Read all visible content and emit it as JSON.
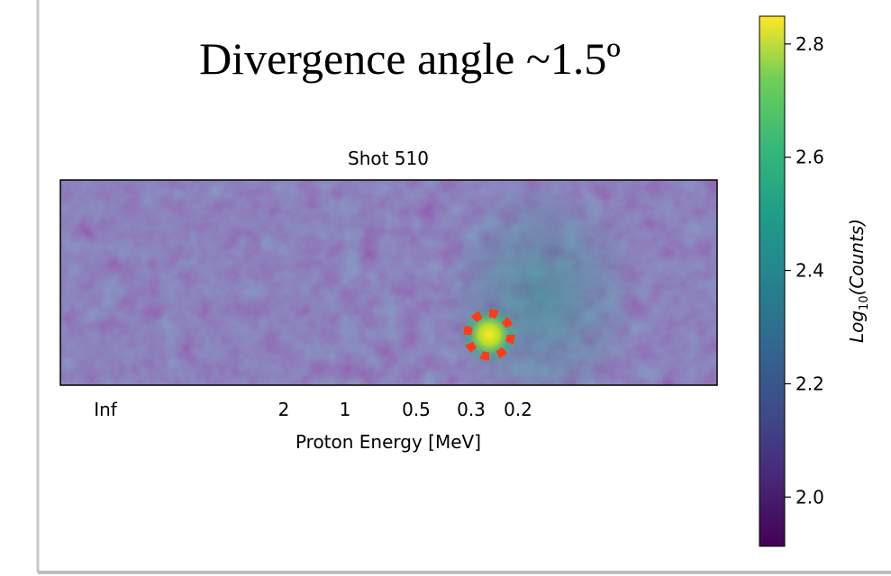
{
  "chart_data": {
    "type": "heatmap",
    "title": "Divergence angle ~1.5º",
    "subtitle": "Shot 510",
    "x_label": "Proton Energy [MeV]",
    "x_tick_labels": [
      "Inf",
      "2",
      "1",
      "0.5",
      "0.3",
      "0.2"
    ],
    "colorbar": {
      "label": {
        "base": "Log",
        "sub": "10",
        "rest": "(Counts)"
      },
      "ylim": [
        1.913,
        2.849
      ],
      "yticks": [
        {
          "value": 2.0,
          "label": "2.0"
        },
        2.2,
        2.4,
        2.6,
        2.8
      ]
    }
  }
}
